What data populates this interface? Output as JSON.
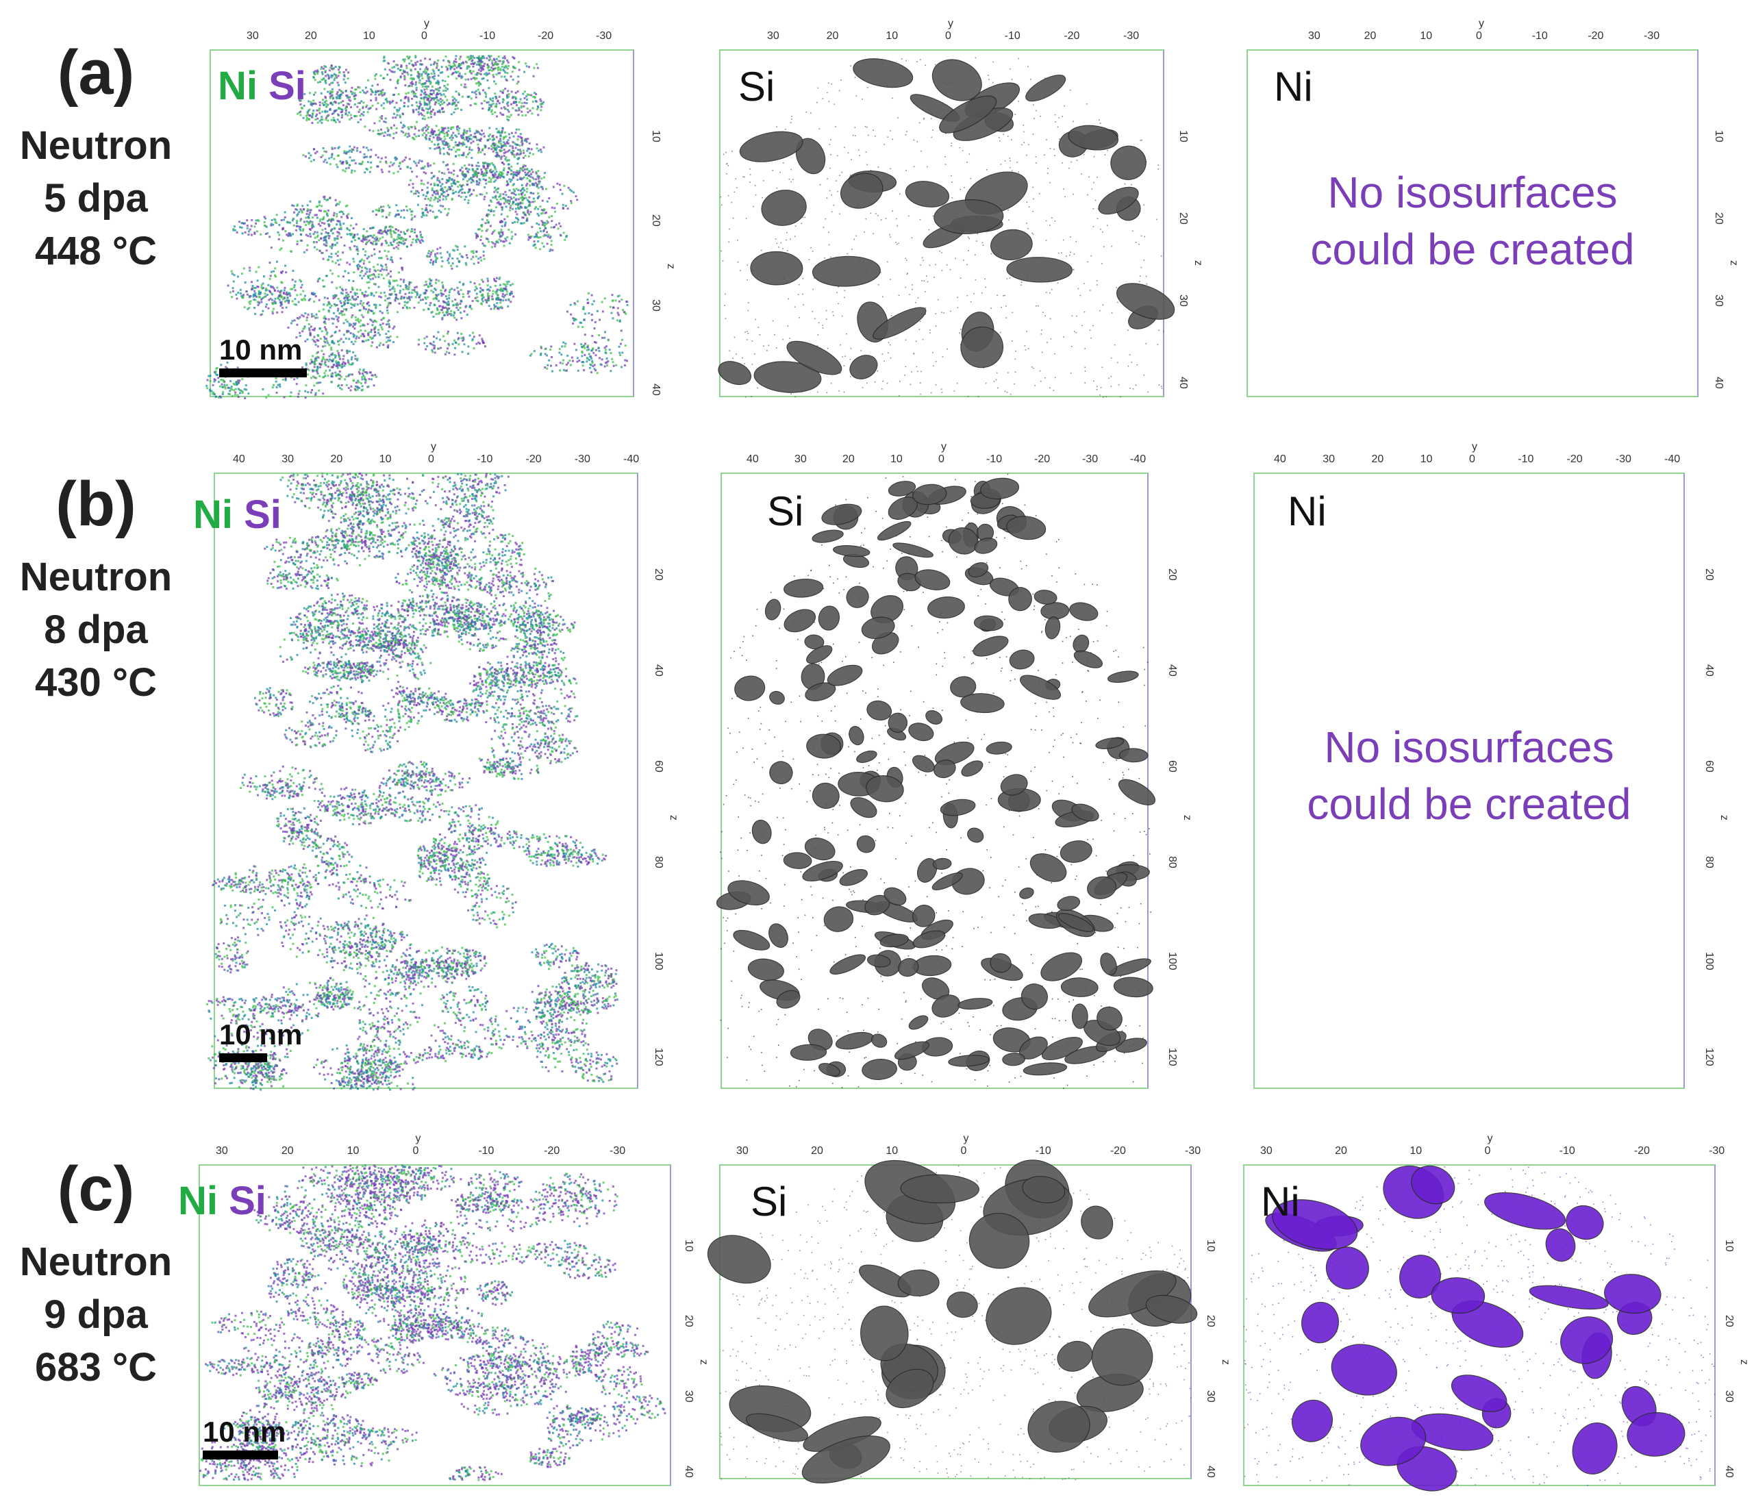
{
  "rows": [
    {
      "tag": "(a)",
      "cond": [
        "Neutron",
        "5 dpa",
        "448 °C"
      ],
      "legend": {
        "ni": "Ni",
        "si": "Si"
      },
      "scale_label": "10 nm",
      "si_label": "Si",
      "ni_label": "Ni",
      "ni_message": [
        "No isosurfaces",
        "could be created"
      ],
      "x_ticks": [
        "30",
        "20",
        "10",
        "0",
        "-10",
        "-20",
        "-30"
      ],
      "z_ticks": [
        "10",
        "20",
        "30",
        "40"
      ]
    },
    {
      "tag": "(b)",
      "cond": [
        "Neutron",
        "8 dpa",
        "430 °C"
      ],
      "legend": {
        "ni": "Ni",
        "si": "Si"
      },
      "scale_label": "10 nm",
      "si_label": "Si",
      "ni_label": "Ni",
      "ni_message": [
        "No isosurfaces",
        "could be created"
      ],
      "x_ticks": [
        "40",
        "30",
        "20",
        "10",
        "0",
        "-10",
        "-20",
        "-30",
        "-40"
      ],
      "z_ticks": [
        "20",
        "40",
        "60",
        "80",
        "100",
        "120"
      ]
    },
    {
      "tag": "(c)",
      "cond": [
        "Neutron",
        "9 dpa",
        "683 °C"
      ],
      "legend": {
        "ni": "Ni",
        "si": "Si"
      },
      "scale_label": "10 nm",
      "si_label": "Si",
      "ni_label": "Ni",
      "x_ticks": [
        "30",
        "20",
        "10",
        "0",
        "-10",
        "-20",
        "-30"
      ],
      "z_ticks": [
        "10",
        "20",
        "30",
        "40"
      ]
    }
  ],
  "axis": {
    "x": "y",
    "z": "z"
  },
  "colors": {
    "ni": "#22aa44",
    "si": "#7a3fb8",
    "iso_si": "#555555",
    "iso_ni": "#6a1fd0"
  }
}
